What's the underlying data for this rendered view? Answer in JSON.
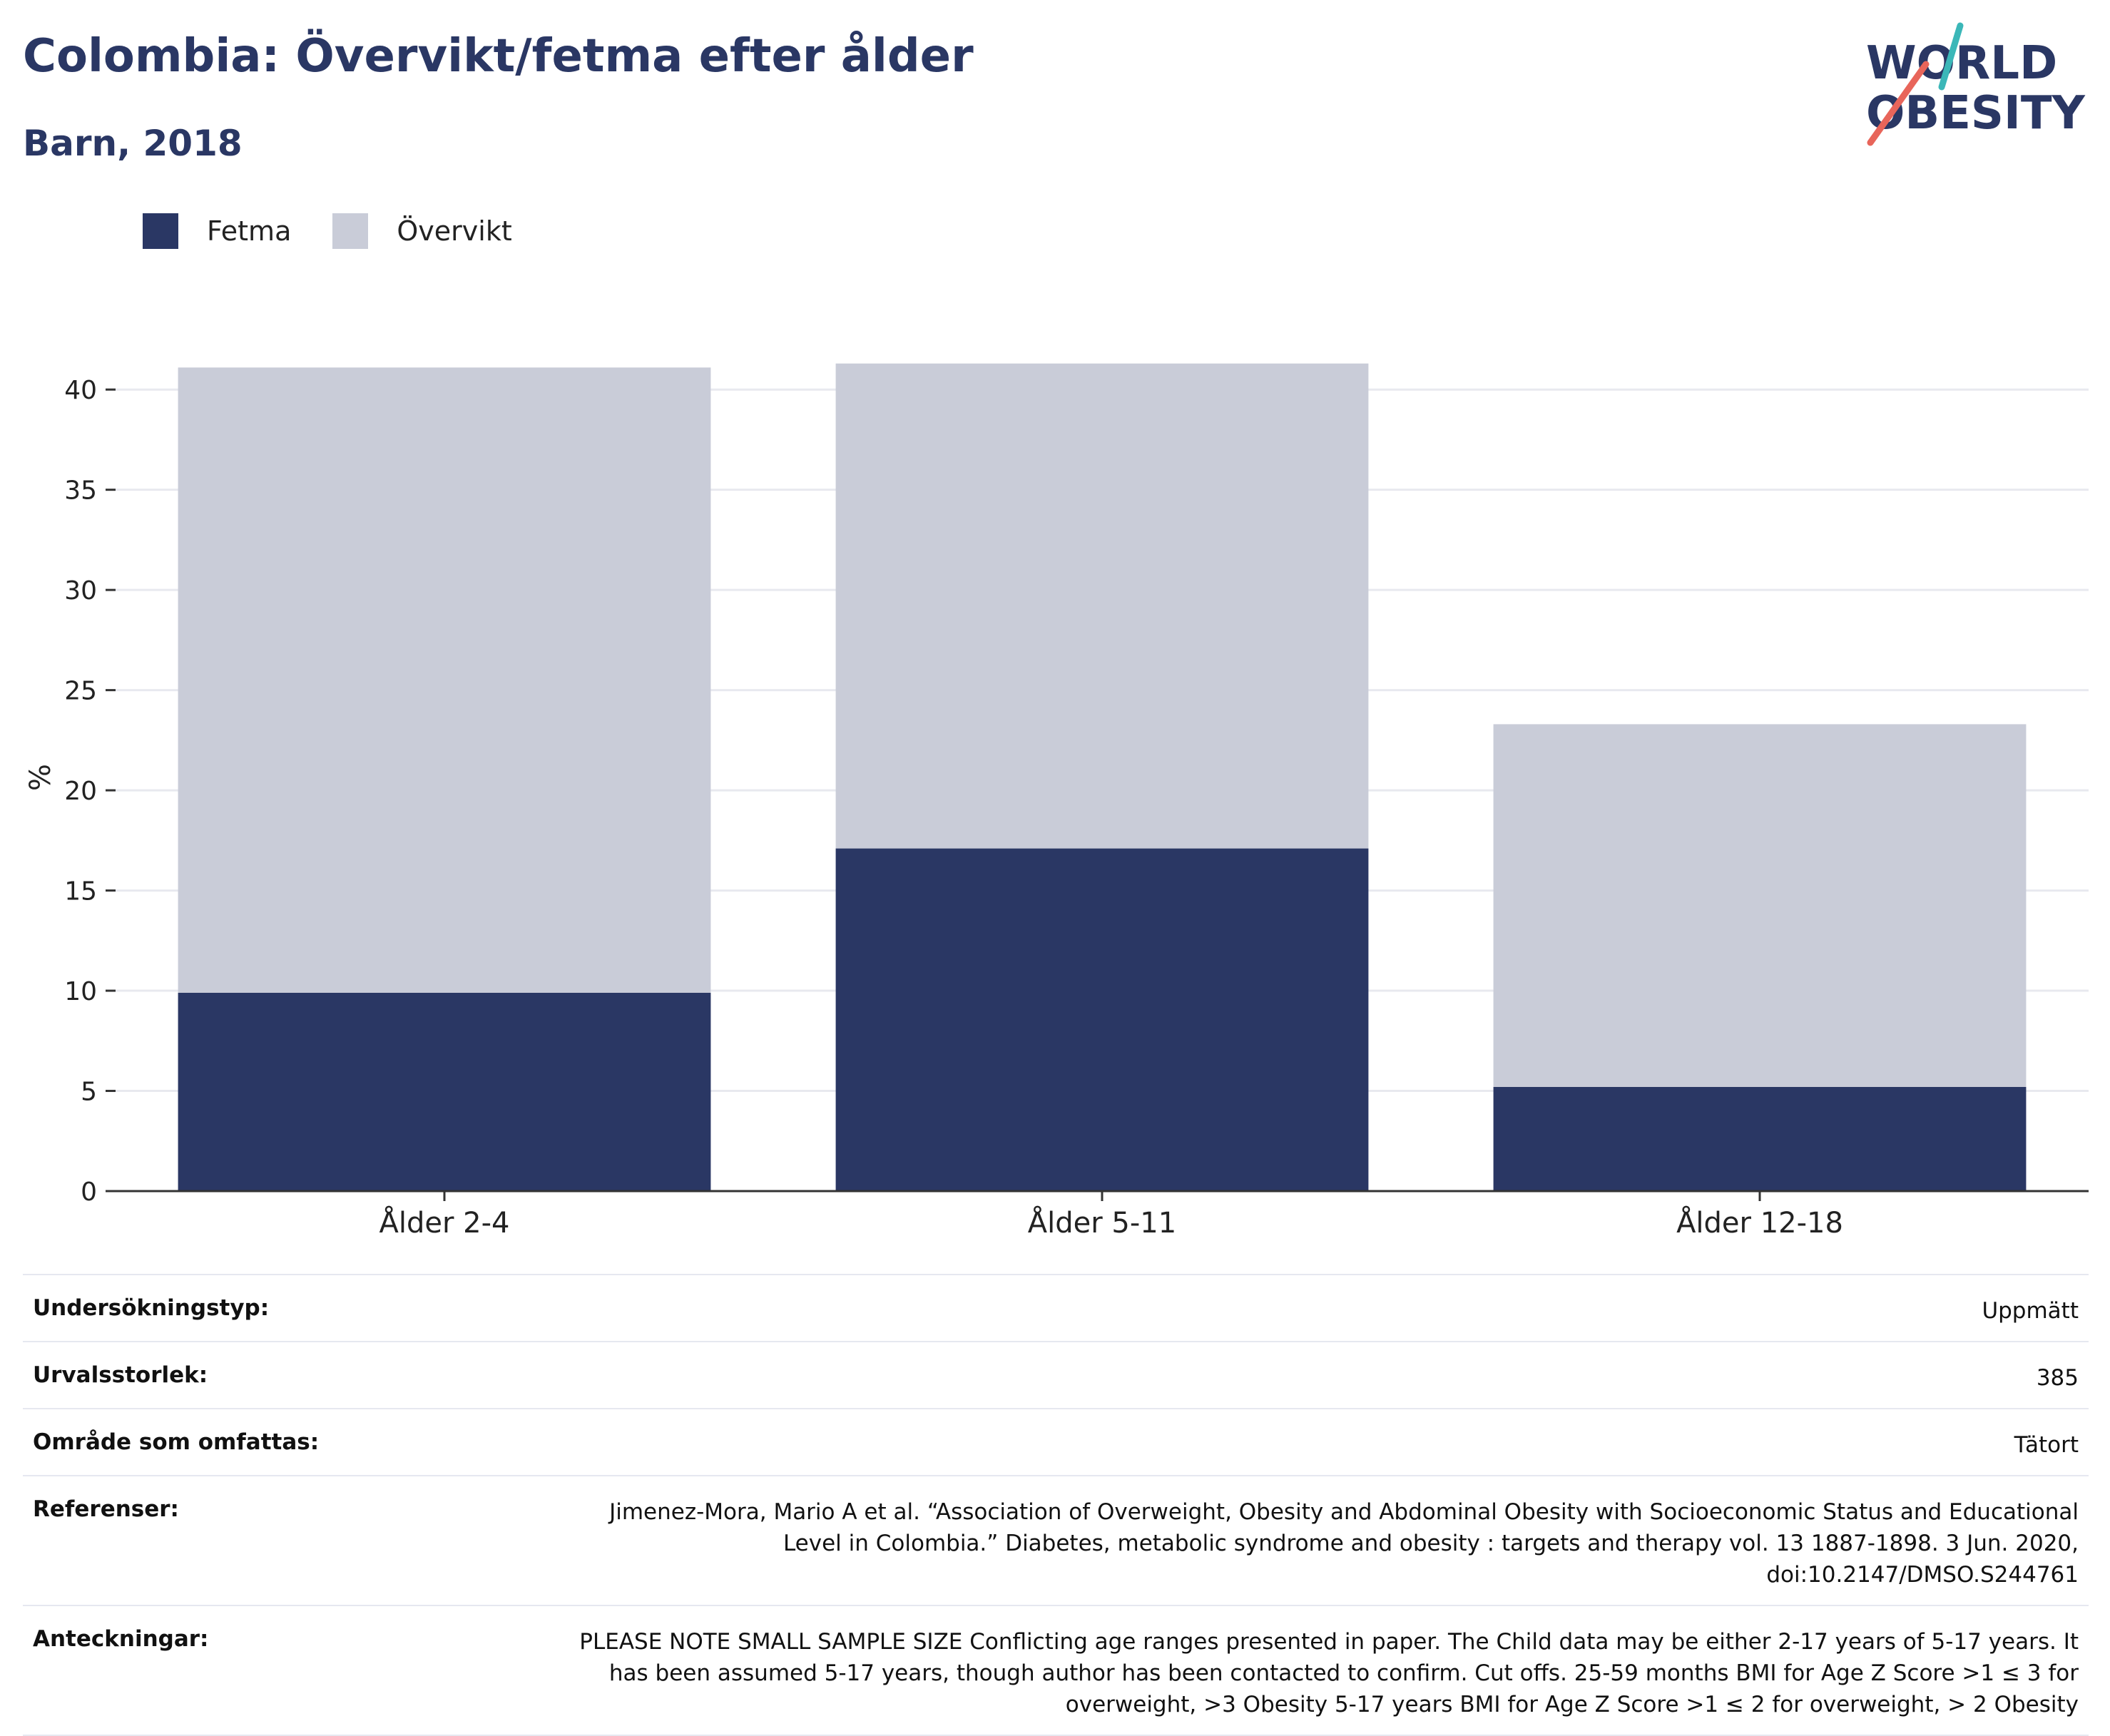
{
  "title": "Colombia: Övervikt/fetma efter ålder",
  "subtitle": "Barn, 2018",
  "logo": {
    "line1": "WORLD",
    "line2": "OBESITY",
    "accent_teal": "#3bb7b8",
    "accent_coral": "#e8655a"
  },
  "colors": {
    "fetma": "#2a3764",
    "overvikt": "#c9ccd8",
    "grid": "#e8e9ef",
    "axis": "#333333"
  },
  "chart_data": {
    "type": "bar",
    "stacked": true,
    "categories": [
      "Ålder 2-4",
      "Ålder 5-11",
      "Ålder 12-18"
    ],
    "series": [
      {
        "name": "Fetma",
        "values": [
          9.9,
          17.1,
          5.2
        ]
      },
      {
        "name": "Övervikt",
        "values": [
          31.2,
          24.2,
          18.1
        ]
      }
    ],
    "ylabel": "%",
    "xlabel": "",
    "ylim": [
      0,
      42
    ],
    "yticks": [
      0,
      5,
      10,
      15,
      20,
      25,
      30,
      35,
      40
    ],
    "legend_position": "top-left",
    "grid": true
  },
  "meta": [
    {
      "key": "Undersökningstyp:",
      "value": "Uppmätt"
    },
    {
      "key": "Urvalsstorlek:",
      "value": "385"
    },
    {
      "key": "Område som omfattas:",
      "value": "Tätort"
    },
    {
      "key": "Referenser:",
      "value": "Jimenez-Mora, Mario A et al. “Association of Overweight, Obesity and Abdominal Obesity with Socioeconomic Status and Educational Level in Colombia.” Diabetes, metabolic syndrome and obesity : targets and therapy vol. 13 1887-1898. 3 Jun. 2020, doi:10.2147/DMSO.S244761"
    },
    {
      "key": "Anteckningar:",
      "value": "PLEASE NOTE SMALL SAMPLE SIZE Conflicting age ranges presented in paper. The Child data may be either 2-17 years of 5-17 years. It has been assumed 5-17 years, though author has been contacted to confirm. Cut offs. 25-59 months BMI for Age Z Score >1 ≤ 3 for overweight, >3 Obesity 5-17 years BMI for Age Z Score >1 ≤ 2 for overweight, > 2 Obesity"
    }
  ]
}
